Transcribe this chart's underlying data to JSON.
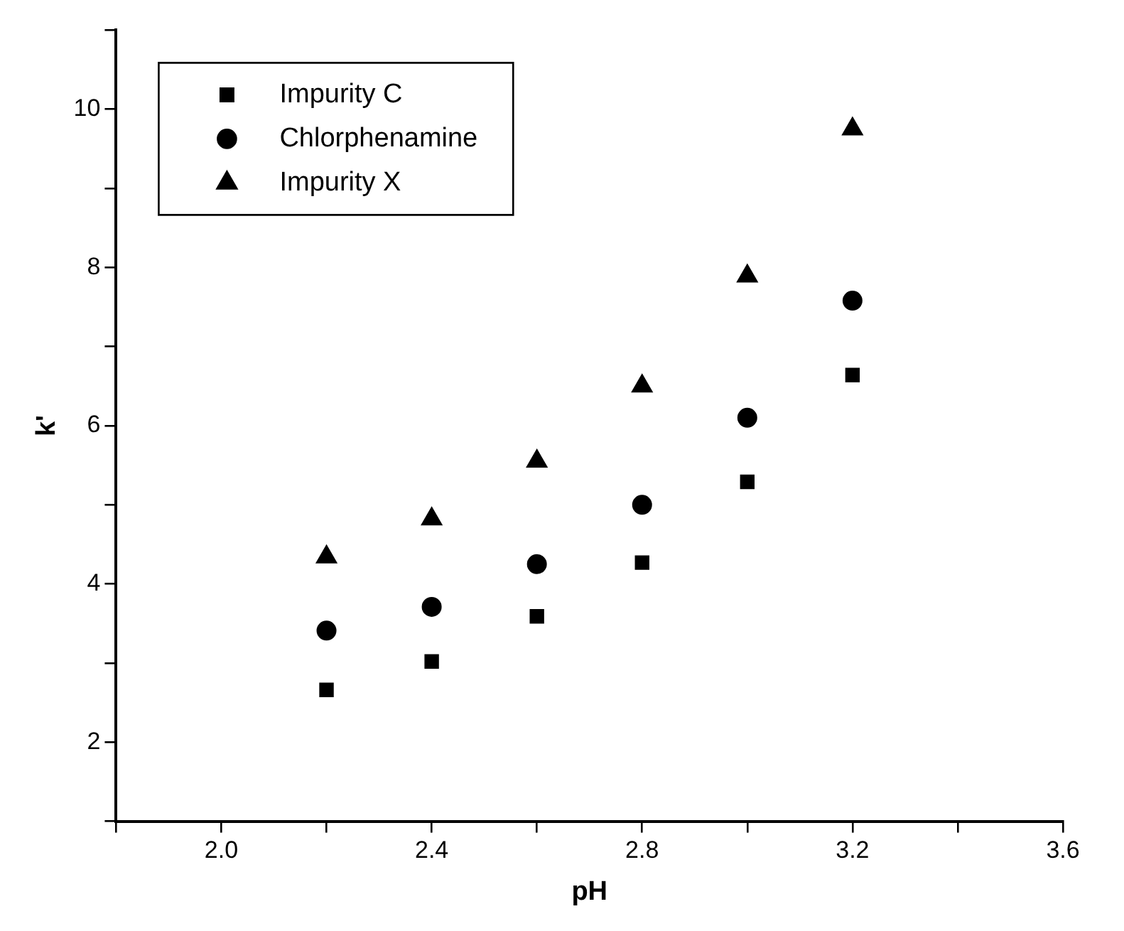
{
  "chart_data": {
    "type": "scatter",
    "xlabel": "pH",
    "ylabel": "k'",
    "x": [
      2.2,
      2.4,
      2.6,
      2.8,
      3.0,
      3.2
    ],
    "series": [
      {
        "name": "Impurity C",
        "color": "#000000",
        "marker": "square",
        "values": [
          2.66,
          3.02,
          3.59,
          4.27,
          5.29,
          6.64
        ]
      },
      {
        "name": "Chlorphenamine",
        "color": "#000000",
        "marker": "circle",
        "values": [
          3.41,
          3.71,
          4.25,
          5.0,
          6.1,
          7.58
        ]
      },
      {
        "name": "Impurity X",
        "color": "#000000",
        "marker": "triangle",
        "values": [
          4.34,
          4.82,
          5.55,
          6.5,
          7.89,
          9.75
        ]
      }
    ],
    "xlim": [
      1.8,
      3.6
    ],
    "ylim": [
      1,
      11
    ],
    "xticks": [
      {
        "value": 1.8,
        "label": null
      },
      {
        "value": 2.0,
        "label": "2.0"
      },
      {
        "value": 2.2,
        "label": null
      },
      2.4,
      {
        "value": 2.6,
        "label": null
      },
      2.8,
      {
        "value": 3.0,
        "label": null
      },
      3.2,
      {
        "value": 3.4,
        "label": null
      },
      3.6
    ],
    "yticks": [
      {
        "value": 1,
        "label": null
      },
      2,
      {
        "value": 3,
        "label": null
      },
      4,
      {
        "value": 5,
        "label": null
      },
      6,
      {
        "value": 7,
        "label": null
      },
      8,
      {
        "value": 9,
        "label": null
      },
      10,
      {
        "value": 11,
        "label": null
      }
    ],
    "grid": false,
    "legend": "top left"
  }
}
